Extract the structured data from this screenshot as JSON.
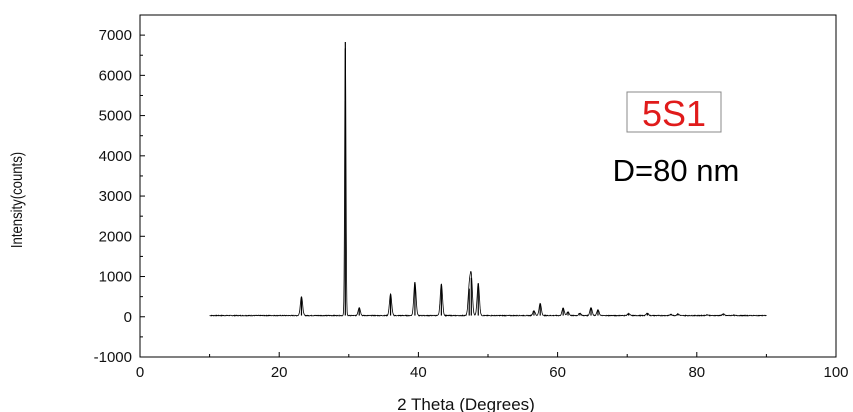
{
  "chart_data": {
    "type": "line",
    "title": "",
    "xlabel": "2 Theta (Degrees)",
    "ylabel": "Intensity(counts)",
    "xlim": [
      0,
      100
    ],
    "ylim": [
      -1000,
      7500
    ],
    "x_ticks": [
      0,
      20,
      40,
      60,
      80,
      100
    ],
    "y_ticks": [
      -1000,
      0,
      1000,
      2000,
      3000,
      4000,
      5000,
      6000,
      7000
    ],
    "x_tick_labels": [
      "0",
      "20",
      "40",
      "60",
      "80",
      "100"
    ],
    "y_tick_labels": [
      "-1000",
      "0",
      "1000",
      "2000",
      "3000",
      "4000",
      "5000",
      "6000",
      "7000"
    ],
    "grid": false,
    "line_color": "#000000",
    "x_range": [
      10,
      90
    ],
    "baseline": 30,
    "peaks": [
      {
        "x": 23.2,
        "y": 500
      },
      {
        "x": 29.5,
        "y": 6830
      },
      {
        "x": 31.5,
        "y": 230
      },
      {
        "x": 36.0,
        "y": 560
      },
      {
        "x": 39.5,
        "y": 860
      },
      {
        "x": 43.3,
        "y": 810
      },
      {
        "x": 47.3,
        "y": 700
      },
      {
        "x": 47.6,
        "y": 970
      },
      {
        "x": 48.6,
        "y": 830
      },
      {
        "x": 56.6,
        "y": 150
      },
      {
        "x": 57.5,
        "y": 330
      },
      {
        "x": 60.8,
        "y": 220
      },
      {
        "x": 61.5,
        "y": 120
      },
      {
        "x": 63.2,
        "y": 90
      },
      {
        "x": 64.8,
        "y": 230
      },
      {
        "x": 65.8,
        "y": 170
      },
      {
        "x": 70.2,
        "y": 80
      },
      {
        "x": 72.9,
        "y": 90
      },
      {
        "x": 76.3,
        "y": 60
      },
      {
        "x": 77.3,
        "y": 70
      },
      {
        "x": 81.5,
        "y": 50
      },
      {
        "x": 83.8,
        "y": 70
      },
      {
        "x": 85.2,
        "y": 40
      }
    ],
    "annotations": [
      {
        "text": "5S1",
        "color": "#e01b1b",
        "boxed": true
      },
      {
        "text": "D=80 nm",
        "color": "#000000",
        "boxed": false
      }
    ]
  }
}
